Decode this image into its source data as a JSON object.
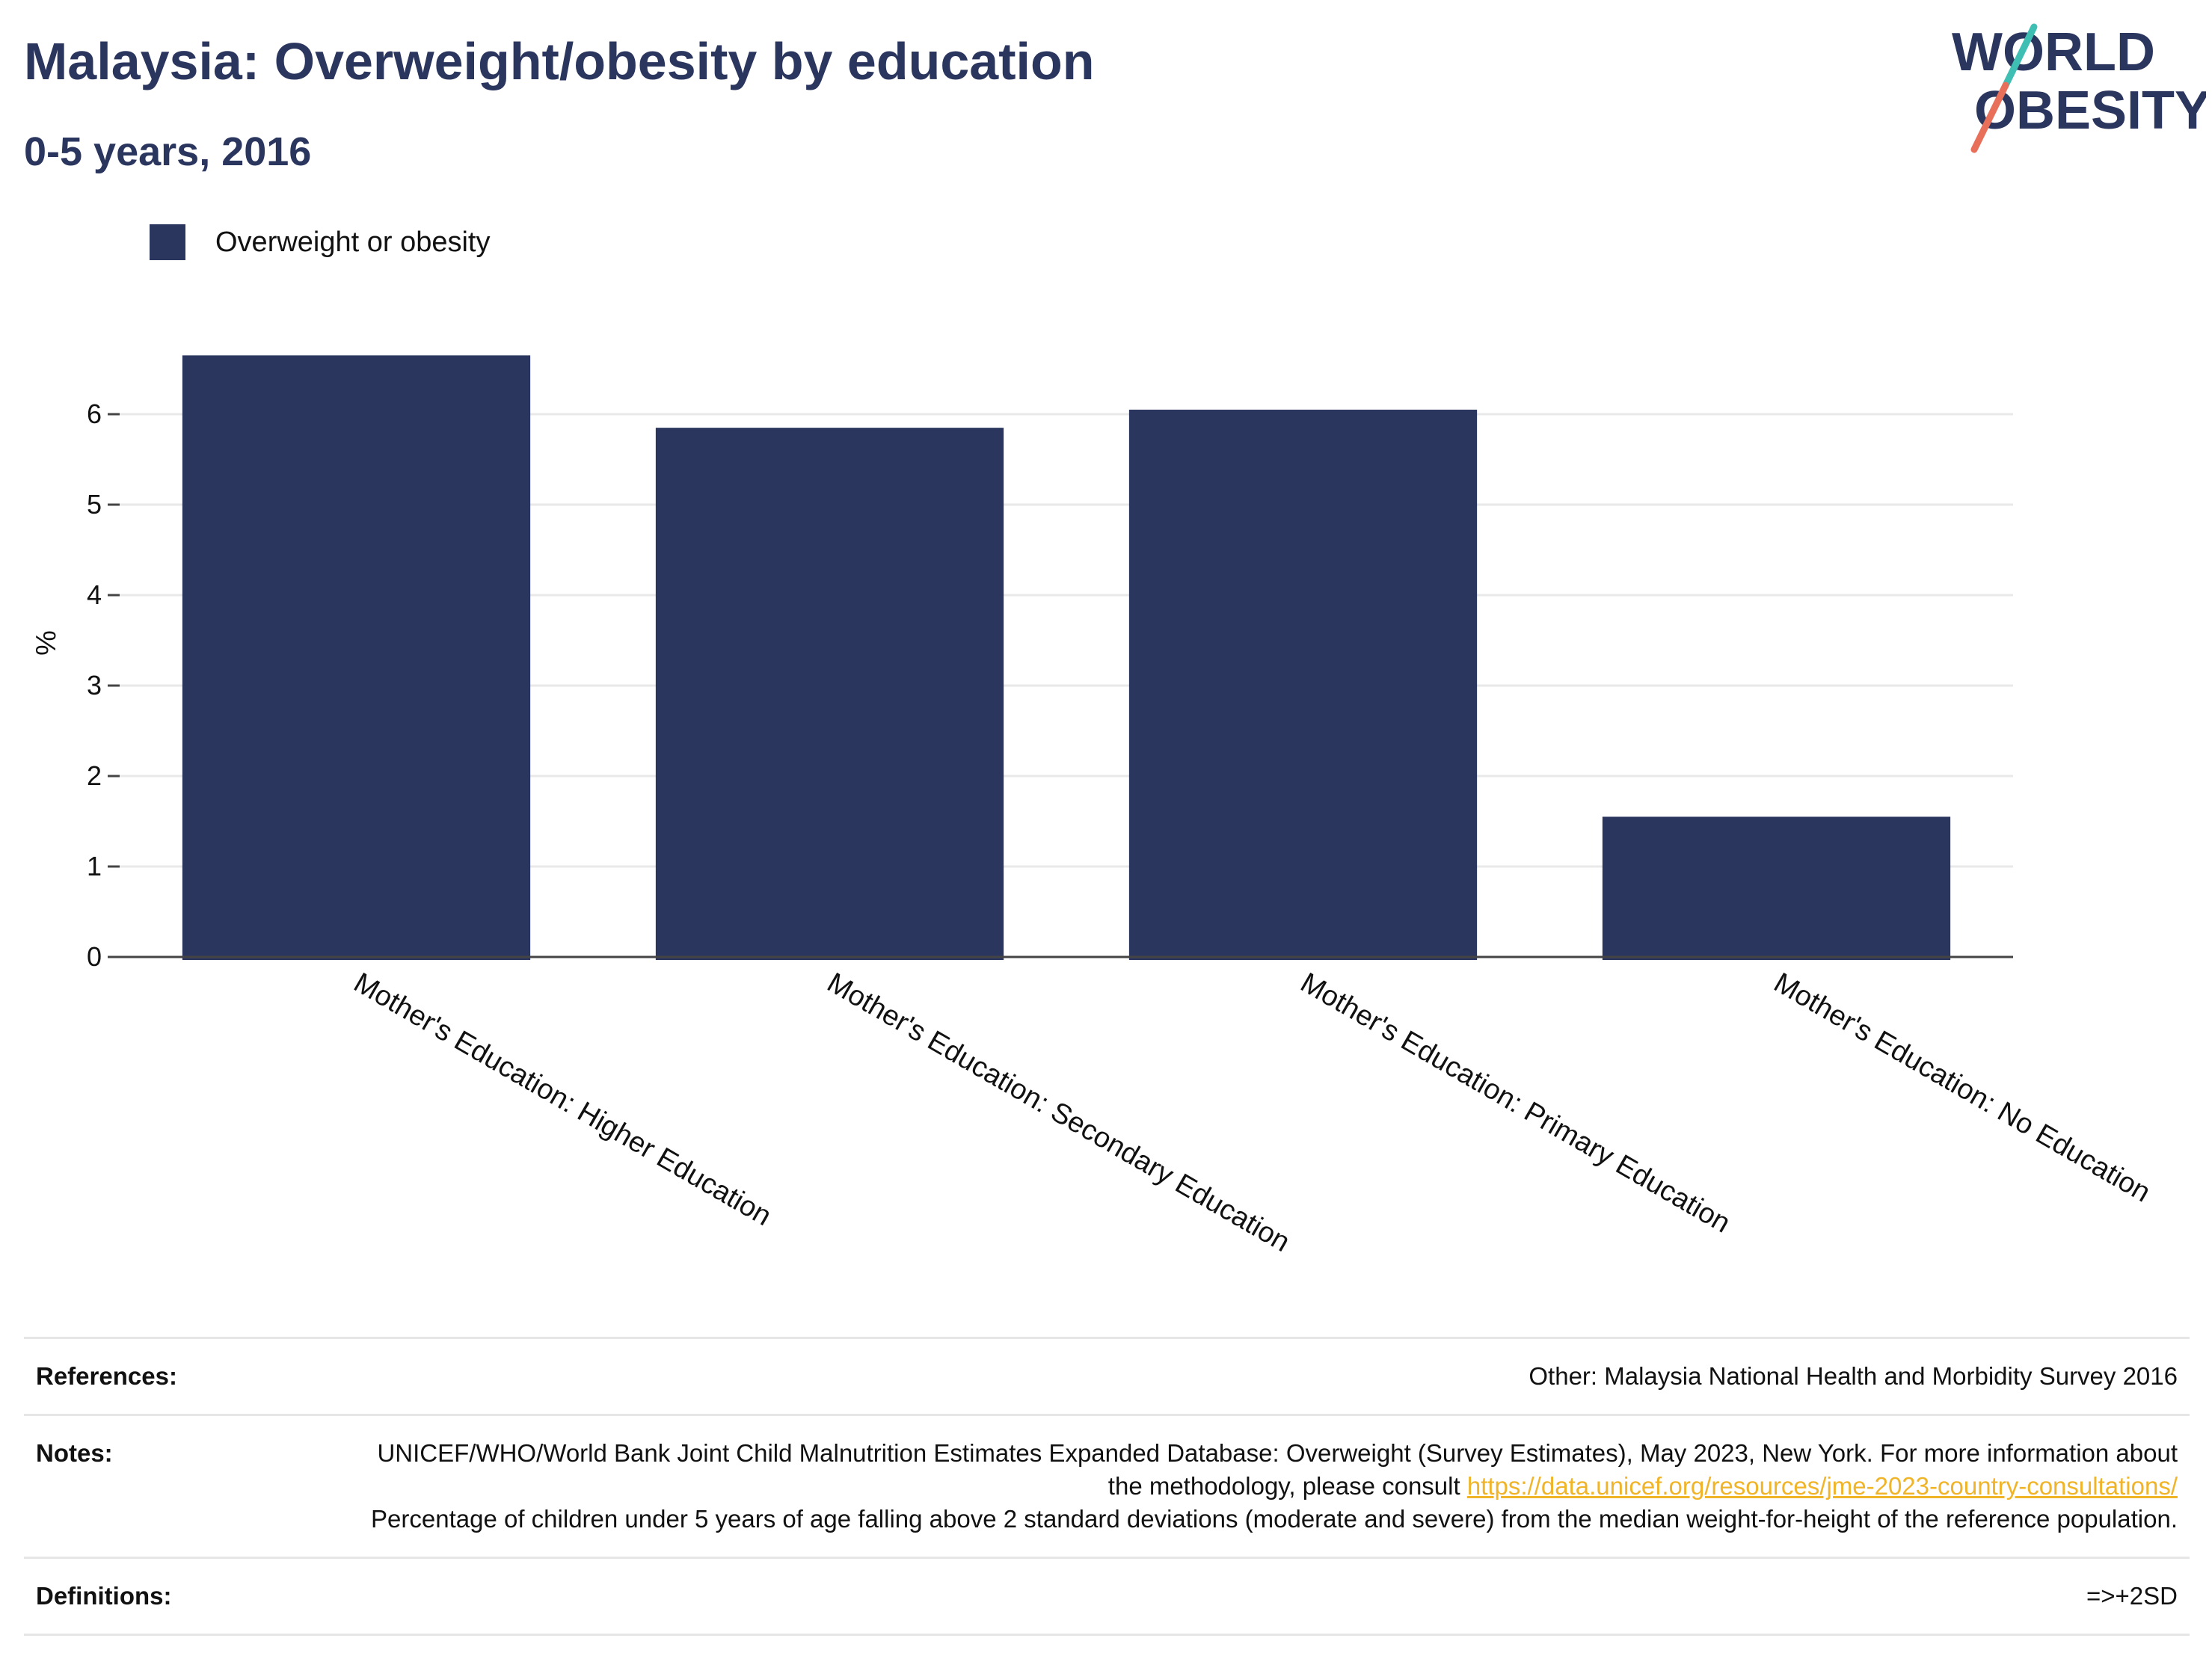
{
  "header": {
    "title": "Malaysia: Overweight/obesity by education",
    "subtitle": "0-5 years, 2016"
  },
  "logo": {
    "line1": "WORLD",
    "line2": "OBESITY"
  },
  "colors": {
    "bar": "#2b365f",
    "title": "#2b365f",
    "link": "#f0b429",
    "logo_teal": "#3fbfb4",
    "logo_coral": "#e8705a"
  },
  "chart_data": {
    "type": "bar",
    "categories": [
      "Mother's Education: Higher Education",
      "Mother's Education: Secondary Education",
      "Mother's Education: Primary Education",
      "Mother's Education: No Education"
    ],
    "series": [
      {
        "name": "Overweight or obesity",
        "values": [
          6.65,
          5.85,
          6.05,
          1.55
        ]
      }
    ],
    "ylabel": "%",
    "xlabel": "",
    "ylim": [
      0,
      7
    ],
    "yticks": [
      0,
      1,
      2,
      3,
      4,
      5,
      6
    ],
    "grid": true,
    "legend": "top-left"
  },
  "footer": {
    "references_label": "References:",
    "references_value": "Other: Malaysia National Health and Morbidity Survey 2016",
    "notes_label": "Notes:",
    "notes_text_1": "UNICEF/WHO/World Bank Joint Child Malnutrition Estimates Expanded Database: Overweight (Survey Estimates), May 2023, New York. For more information about the methodology, please consult",
    "notes_link": "https://data.unicef.org/resources/jme-2023-country-consultations/",
    "notes_text_2": "Percentage of children under 5 years of age falling above 2 standard deviations (moderate and severe) from the median weight-for-height of the reference population.",
    "definitions_label": "Definitions:",
    "definitions_value": "=>+2SD"
  }
}
